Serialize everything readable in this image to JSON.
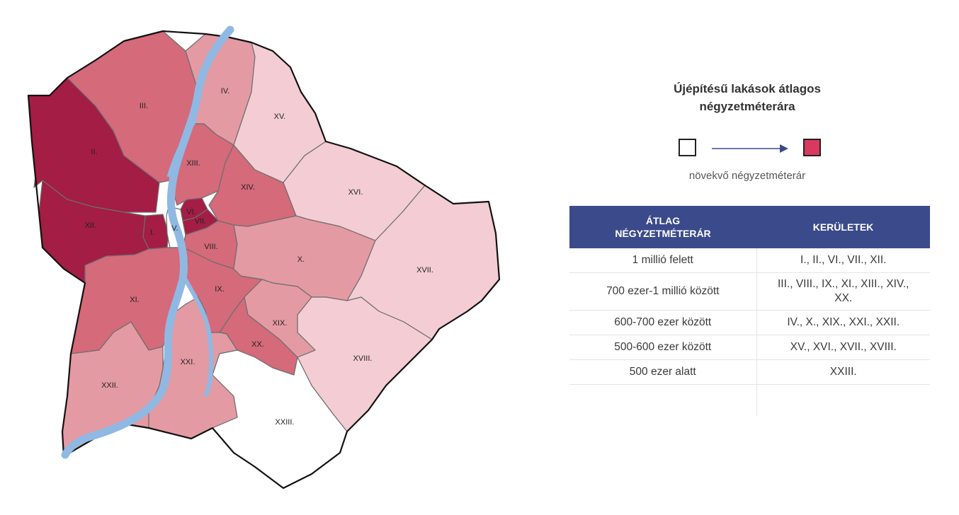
{
  "legend": {
    "title_line1": "Újépítésű lakások átlagos",
    "title_line2": "négyzetméterára",
    "note": "növekvő négyzetméterár",
    "low_color": "#ffffff",
    "high_color": "#d9395e"
  },
  "table": {
    "header_col1_line1": "ÁTLAG",
    "header_col1_line2": "NÉGYZETMÉTERÁR",
    "header_col2": "KERÜLETEK",
    "rows": [
      {
        "range": "1 millió felett",
        "districts": "I., II., VI., VII., XII."
      },
      {
        "range": "700 ezer-1 millió között",
        "districts_line1": "III., VIII., IX., XI., XIII., XIV.,",
        "districts_line2": "XX."
      },
      {
        "range": "600-700 ezer között",
        "districts": "IV., X., XIX., XXI., XXII."
      },
      {
        "range": "500-600 ezer között",
        "districts": "XV., XVI., XVII., XVIII."
      },
      {
        "range": "500 ezer alatt",
        "districts": "XXIII."
      }
    ]
  },
  "map": {
    "tier_colors": {
      "tier1": "#a31d45",
      "tier2": "#d46a7a",
      "tier3": "#e49aa3",
      "tier4": "#f3cdd3",
      "tier5": "#ffffff"
    },
    "river_color": "#8fb9e3",
    "districts": [
      {
        "id": "I",
        "label": "I.",
        "tier": "tier1"
      },
      {
        "id": "II",
        "label": "II.",
        "tier": "tier1"
      },
      {
        "id": "III",
        "label": "III.",
        "tier": "tier2"
      },
      {
        "id": "IV",
        "label": "IV.",
        "tier": "tier3"
      },
      {
        "id": "V",
        "label": "V.",
        "tier": "tier5"
      },
      {
        "id": "VI",
        "label": "VI.",
        "tier": "tier1"
      },
      {
        "id": "VII",
        "label": "VII.",
        "tier": "tier1"
      },
      {
        "id": "VIII",
        "label": "VIII.",
        "tier": "tier2"
      },
      {
        "id": "IX",
        "label": "IX.",
        "tier": "tier2"
      },
      {
        "id": "X",
        "label": "X.",
        "tier": "tier3"
      },
      {
        "id": "XI",
        "label": "XI.",
        "tier": "tier2"
      },
      {
        "id": "XII",
        "label": "XII.",
        "tier": "tier1"
      },
      {
        "id": "XIII",
        "label": "XIII.",
        "tier": "tier2"
      },
      {
        "id": "XIV",
        "label": "XIV.",
        "tier": "tier2"
      },
      {
        "id": "XV",
        "label": "XV.",
        "tier": "tier4"
      },
      {
        "id": "XVI",
        "label": "XVI.",
        "tier": "tier4"
      },
      {
        "id": "XVII",
        "label": "XVII.",
        "tier": "tier4"
      },
      {
        "id": "XVIII",
        "label": "XVIII.",
        "tier": "tier4"
      },
      {
        "id": "XIX",
        "label": "XIX.",
        "tier": "tier3"
      },
      {
        "id": "XX",
        "label": "XX.",
        "tier": "tier2"
      },
      {
        "id": "XXI",
        "label": "XXI.",
        "tier": "tier3"
      },
      {
        "id": "XXII",
        "label": "XXII.",
        "tier": "tier3"
      },
      {
        "id": "XXIII",
        "label": "XXIII.",
        "tier": "tier5"
      }
    ]
  }
}
